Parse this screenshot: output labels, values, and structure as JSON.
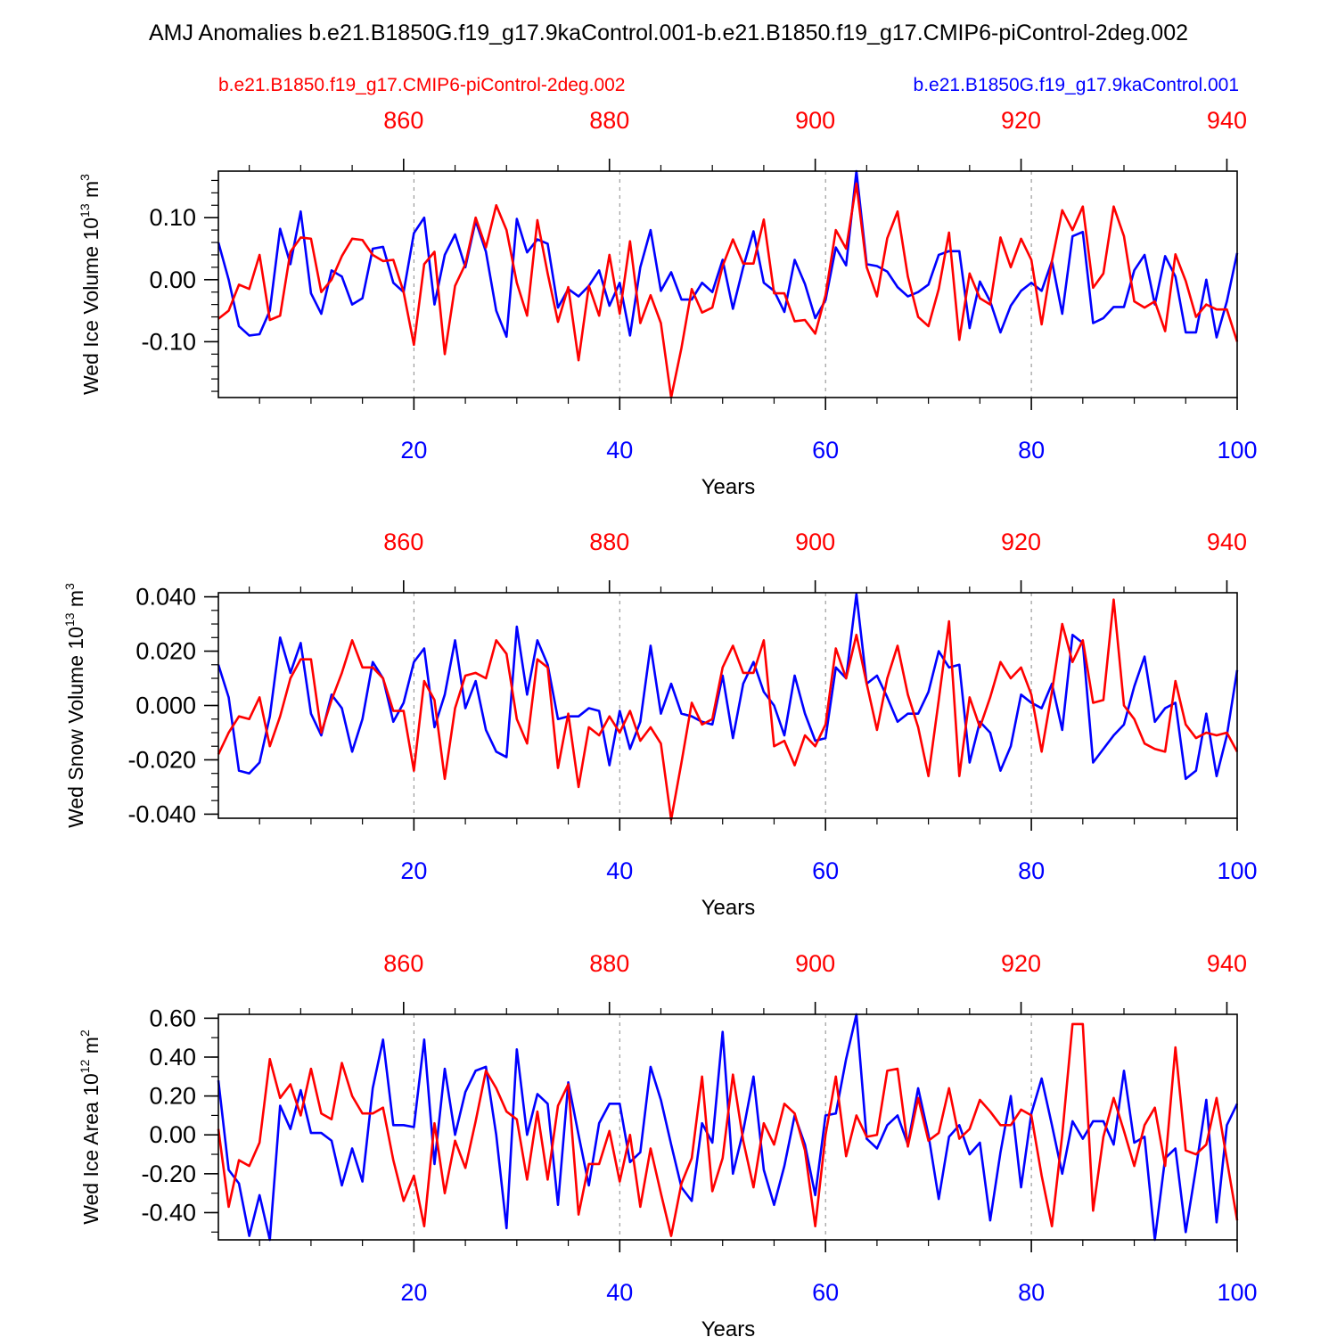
{
  "title": "AMJ Anomalies b.e21.B1850G.f19_g17.9kaControl.001-b.e21.B1850.f19_g17.CMIP6-piControl-2deg.002",
  "legend": {
    "red_name": "b.e21.B1850.f19_g17.CMIP6-piControl-2deg.002",
    "blue_name": "b.e21.B1850G.f19_g17.9kaControl.001"
  },
  "colors": {
    "red": "#ff0000",
    "blue": "#0000ff",
    "axis": "#000000",
    "grid": "#888888"
  },
  "chart_data": [
    {
      "type": "line",
      "ylabel_main": "Wed Ice Volume 10",
      "ylabel_exp": "13",
      "ylabel_unit": " m",
      "ylabel_unit_exp": "3",
      "xlabel": "Years",
      "xlim": [
        1,
        100
      ],
      "ylim": [
        -0.19,
        0.175
      ],
      "yticks": [
        -0.1,
        0.0,
        0.1
      ],
      "yticklabels": [
        "-0.10",
        "0.00",
        "0.10"
      ],
      "yminor": 0.02,
      "bottom_ticks": [
        20,
        40,
        60,
        80,
        100
      ],
      "top_ticks": [
        860,
        880,
        900,
        920,
        940
      ],
      "top_axis_offset": 841,
      "series": [
        {
          "name": "b.e21.B1850G.f19_g17.9kaControl.001",
          "color": "blue",
          "values": [
            0.06,
            0.0,
            -0.075,
            -0.09,
            -0.088,
            -0.05,
            0.082,
            0.025,
            0.11,
            -0.022,
            -0.055,
            0.015,
            0.005,
            -0.04,
            -0.03,
            0.05,
            0.053,
            -0.005,
            -0.02,
            0.075,
            0.1,
            -0.04,
            0.04,
            0.073,
            0.02,
            0.095,
            0.045,
            -0.05,
            -0.092,
            0.098,
            0.044,
            0.065,
            0.058,
            -0.045,
            -0.015,
            -0.027,
            -0.01,
            0.015,
            -0.042,
            -0.005,
            -0.09,
            0.02,
            0.08,
            -0.018,
            0.012,
            -0.032,
            -0.032,
            -0.005,
            -0.02,
            0.032,
            -0.047,
            0.02,
            0.078,
            -0.005,
            -0.018,
            -0.052,
            0.032,
            -0.007,
            -0.062,
            -0.033,
            0.052,
            0.023,
            0.175,
            0.025,
            0.022,
            0.013,
            -0.012,
            -0.027,
            -0.02,
            -0.008,
            0.04,
            0.046,
            0.046,
            -0.078,
            -0.003,
            -0.035,
            -0.085,
            -0.042,
            -0.018,
            -0.005,
            -0.018,
            0.03,
            -0.055,
            0.07,
            0.077,
            -0.07,
            -0.062,
            -0.044,
            -0.044,
            0.015,
            0.04,
            -0.04,
            0.038,
            0.005,
            -0.085,
            -0.085,
            0.0,
            -0.093,
            -0.035,
            0.043
          ]
        },
        {
          "name": "b.e21.B1850.f19_g17.CMIP6-piControl-2deg.002",
          "color": "red",
          "values": [
            -0.063,
            -0.05,
            -0.008,
            -0.015,
            0.04,
            -0.065,
            -0.058,
            0.045,
            0.068,
            0.066,
            -0.02,
            0.0,
            0.038,
            0.066,
            0.064,
            0.04,
            0.03,
            0.032,
            -0.02,
            -0.105,
            0.025,
            0.045,
            -0.12,
            -0.01,
            0.025,
            0.1,
            0.052,
            0.12,
            0.08,
            -0.005,
            -0.058,
            0.096,
            0.01,
            -0.068,
            -0.012,
            -0.13,
            -0.01,
            -0.058,
            0.04,
            -0.055,
            0.062,
            -0.07,
            -0.025,
            -0.07,
            -0.19,
            -0.11,
            -0.015,
            -0.053,
            -0.045,
            0.022,
            0.065,
            0.026,
            0.026,
            0.097,
            -0.022,
            -0.022,
            -0.067,
            -0.065,
            -0.087,
            -0.025,
            0.08,
            0.05,
            0.155,
            0.02,
            -0.027,
            0.067,
            0.11,
            0.005,
            -0.06,
            -0.075,
            -0.015,
            0.076,
            -0.097,
            0.01,
            -0.03,
            -0.04,
            0.068,
            0.02,
            0.066,
            0.032,
            -0.072,
            0.03,
            0.112,
            0.08,
            0.118,
            -0.013,
            0.01,
            0.118,
            0.07,
            -0.035,
            -0.045,
            -0.035,
            -0.083,
            0.041,
            -0.002,
            -0.06,
            -0.04,
            -0.048,
            -0.048,
            -0.1
          ]
        }
      ]
    },
    {
      "type": "line",
      "ylabel_main": "Wed Snow Volume 10",
      "ylabel_exp": "13",
      "ylabel_unit": " m",
      "ylabel_unit_exp": "3",
      "xlabel": "Years",
      "xlim": [
        1,
        100
      ],
      "ylim": [
        -0.0415,
        0.0415
      ],
      "yticks": [
        -0.04,
        -0.02,
        0.0,
        0.02,
        0.04
      ],
      "yticklabels": [
        "-0.040",
        "-0.020",
        "0.000",
        "0.020",
        "0.040"
      ],
      "yminor": 0.005,
      "bottom_ticks": [
        20,
        40,
        60,
        80,
        100
      ],
      "top_ticks": [
        860,
        880,
        900,
        920,
        940
      ],
      "top_axis_offset": 841,
      "series": [
        {
          "name": "b.e21.B1850G.f19_g17.9kaControl.001",
          "color": "blue",
          "values": [
            0.015,
            0.003,
            -0.024,
            -0.025,
            -0.021,
            -0.004,
            0.025,
            0.012,
            0.023,
            -0.003,
            -0.011,
            0.004,
            -0.001,
            -0.017,
            -0.005,
            0.016,
            0.01,
            -0.006,
            0.001,
            0.016,
            0.021,
            -0.008,
            0.004,
            0.024,
            -0.001,
            0.009,
            -0.009,
            -0.017,
            -0.019,
            0.029,
            0.004,
            0.024,
            0.015,
            -0.005,
            -0.004,
            -0.004,
            -0.001,
            -0.002,
            -0.022,
            -0.002,
            -0.016,
            -0.006,
            0.022,
            -0.003,
            0.008,
            -0.003,
            -0.004,
            -0.006,
            -0.007,
            0.011,
            -0.012,
            0.008,
            0.016,
            0.005,
            0.0,
            -0.011,
            0.011,
            -0.003,
            -0.013,
            -0.012,
            0.014,
            0.01,
            0.041,
            0.008,
            0.011,
            0.003,
            -0.006,
            -0.003,
            -0.003,
            0.005,
            0.02,
            0.014,
            0.015,
            -0.021,
            -0.006,
            -0.01,
            -0.024,
            -0.015,
            0.004,
            0.001,
            -0.001,
            0.008,
            -0.009,
            0.026,
            0.023,
            -0.021,
            -0.016,
            -0.011,
            -0.007,
            0.007,
            0.018,
            -0.006,
            -0.001,
            0.001,
            -0.027,
            -0.024,
            -0.003,
            -0.026,
            -0.011,
            0.013
          ]
        },
        {
          "name": "b.e21.B1850.f19_g17.CMIP6-piControl-2deg.002",
          "color": "red",
          "values": [
            -0.018,
            -0.01,
            -0.004,
            -0.005,
            0.003,
            -0.015,
            -0.004,
            0.01,
            0.017,
            0.017,
            -0.01,
            0.002,
            0.012,
            0.024,
            0.014,
            0.014,
            0.01,
            -0.002,
            -0.002,
            -0.024,
            0.009,
            0.002,
            -0.027,
            -0.001,
            0.011,
            0.012,
            0.01,
            0.024,
            0.019,
            -0.005,
            -0.014,
            0.017,
            0.014,
            -0.023,
            -0.003,
            -0.03,
            -0.008,
            -0.011,
            -0.004,
            -0.01,
            -0.002,
            -0.013,
            -0.008,
            -0.014,
            -0.042,
            -0.021,
            0.001,
            -0.007,
            -0.005,
            0.014,
            0.022,
            0.012,
            0.012,
            0.024,
            -0.015,
            -0.013,
            -0.022,
            -0.011,
            -0.015,
            -0.007,
            0.021,
            0.01,
            0.026,
            0.008,
            -0.009,
            0.01,
            0.022,
            0.004,
            -0.008,
            -0.026,
            0.002,
            0.031,
            -0.026,
            0.003,
            -0.008,
            0.003,
            0.016,
            0.01,
            0.014,
            0.004,
            -0.017,
            0.005,
            0.03,
            0.016,
            0.024,
            0.001,
            0.002,
            0.039,
            0.0,
            -0.005,
            -0.014,
            -0.016,
            -0.017,
            0.009,
            -0.007,
            -0.012,
            -0.01,
            -0.011,
            -0.01,
            -0.017
          ]
        }
      ]
    },
    {
      "type": "line",
      "ylabel_main": "Wed Ice Area 10",
      "ylabel_exp": "12",
      "ylabel_unit": " m",
      "ylabel_unit_exp": "2",
      "xlabel": "Years",
      "xlim": [
        1,
        100
      ],
      "ylim": [
        -0.54,
        0.62
      ],
      "yticks": [
        -0.4,
        -0.2,
        0.0,
        0.2,
        0.4,
        0.6
      ],
      "yticklabels": [
        "-0.40",
        "-0.20",
        "0.00",
        "0.20",
        "0.40",
        "0.60"
      ],
      "yminor": 0.1,
      "bottom_ticks": [
        20,
        40,
        60,
        80,
        100
      ],
      "top_ticks": [
        860,
        880,
        900,
        920,
        940
      ],
      "top_axis_offset": 841,
      "series": [
        {
          "name": "b.e21.B1850G.f19_g17.9kaControl.001",
          "color": "blue",
          "values": [
            0.28,
            -0.18,
            -0.25,
            -0.52,
            -0.31,
            -0.54,
            0.15,
            0.03,
            0.23,
            0.01,
            0.01,
            -0.03,
            -0.26,
            -0.07,
            -0.24,
            0.24,
            0.49,
            0.05,
            0.05,
            0.04,
            0.49,
            -0.15,
            0.34,
            0.0,
            0.22,
            0.33,
            0.35,
            0.0,
            -0.48,
            0.44,
            0.0,
            0.21,
            0.16,
            -0.36,
            0.27,
            0.0,
            -0.26,
            0.06,
            0.16,
            0.16,
            -0.14,
            -0.09,
            0.35,
            0.18,
            -0.05,
            -0.27,
            -0.34,
            0.06,
            -0.04,
            0.53,
            -0.2,
            0.02,
            0.3,
            -0.18,
            -0.36,
            -0.16,
            0.1,
            -0.05,
            -0.31,
            0.1,
            0.11,
            0.39,
            0.62,
            -0.02,
            -0.07,
            0.05,
            0.1,
            -0.05,
            0.24,
            0.0,
            -0.33,
            -0.01,
            0.05,
            -0.1,
            -0.04,
            -0.44,
            -0.09,
            0.2,
            -0.27,
            0.11,
            0.29,
            0.05,
            -0.2,
            0.07,
            -0.02,
            0.07,
            0.07,
            -0.05,
            0.33,
            -0.04,
            -0.01,
            -0.54,
            -0.12,
            -0.07,
            -0.5,
            -0.17,
            0.18,
            -0.45,
            0.05,
            0.16
          ]
        },
        {
          "name": "b.e21.B1850.f19_g17.CMIP6-piControl-2deg.002",
          "color": "red",
          "values": [
            0.03,
            -0.37,
            -0.13,
            -0.16,
            -0.04,
            0.39,
            0.19,
            0.26,
            0.1,
            0.34,
            0.11,
            0.08,
            0.37,
            0.2,
            0.11,
            0.11,
            0.14,
            -0.13,
            -0.34,
            -0.21,
            -0.47,
            0.06,
            -0.3,
            -0.03,
            -0.17,
            0.07,
            0.33,
            0.24,
            0.12,
            0.08,
            -0.23,
            0.12,
            -0.23,
            0.15,
            0.26,
            -0.41,
            -0.15,
            -0.15,
            0.02,
            -0.24,
            0.0,
            -0.37,
            -0.07,
            -0.3,
            -0.52,
            -0.25,
            -0.12,
            0.3,
            -0.29,
            -0.12,
            0.31,
            -0.03,
            -0.27,
            0.06,
            -0.05,
            0.16,
            0.11,
            -0.08,
            -0.47,
            0.0,
            0.3,
            -0.11,
            0.1,
            -0.01,
            0.0,
            0.33,
            0.34,
            -0.06,
            0.19,
            -0.03,
            0.01,
            0.24,
            -0.02,
            0.03,
            0.18,
            0.12,
            0.05,
            0.05,
            0.13,
            0.1,
            -0.21,
            -0.47,
            0.0,
            0.57,
            0.57,
            -0.39,
            -0.01,
            0.19,
            0.02,
            -0.16,
            0.05,
            0.14,
            -0.16,
            0.45,
            -0.08,
            -0.1,
            -0.05,
            0.19,
            -0.13,
            -0.44
          ]
        }
      ]
    }
  ]
}
